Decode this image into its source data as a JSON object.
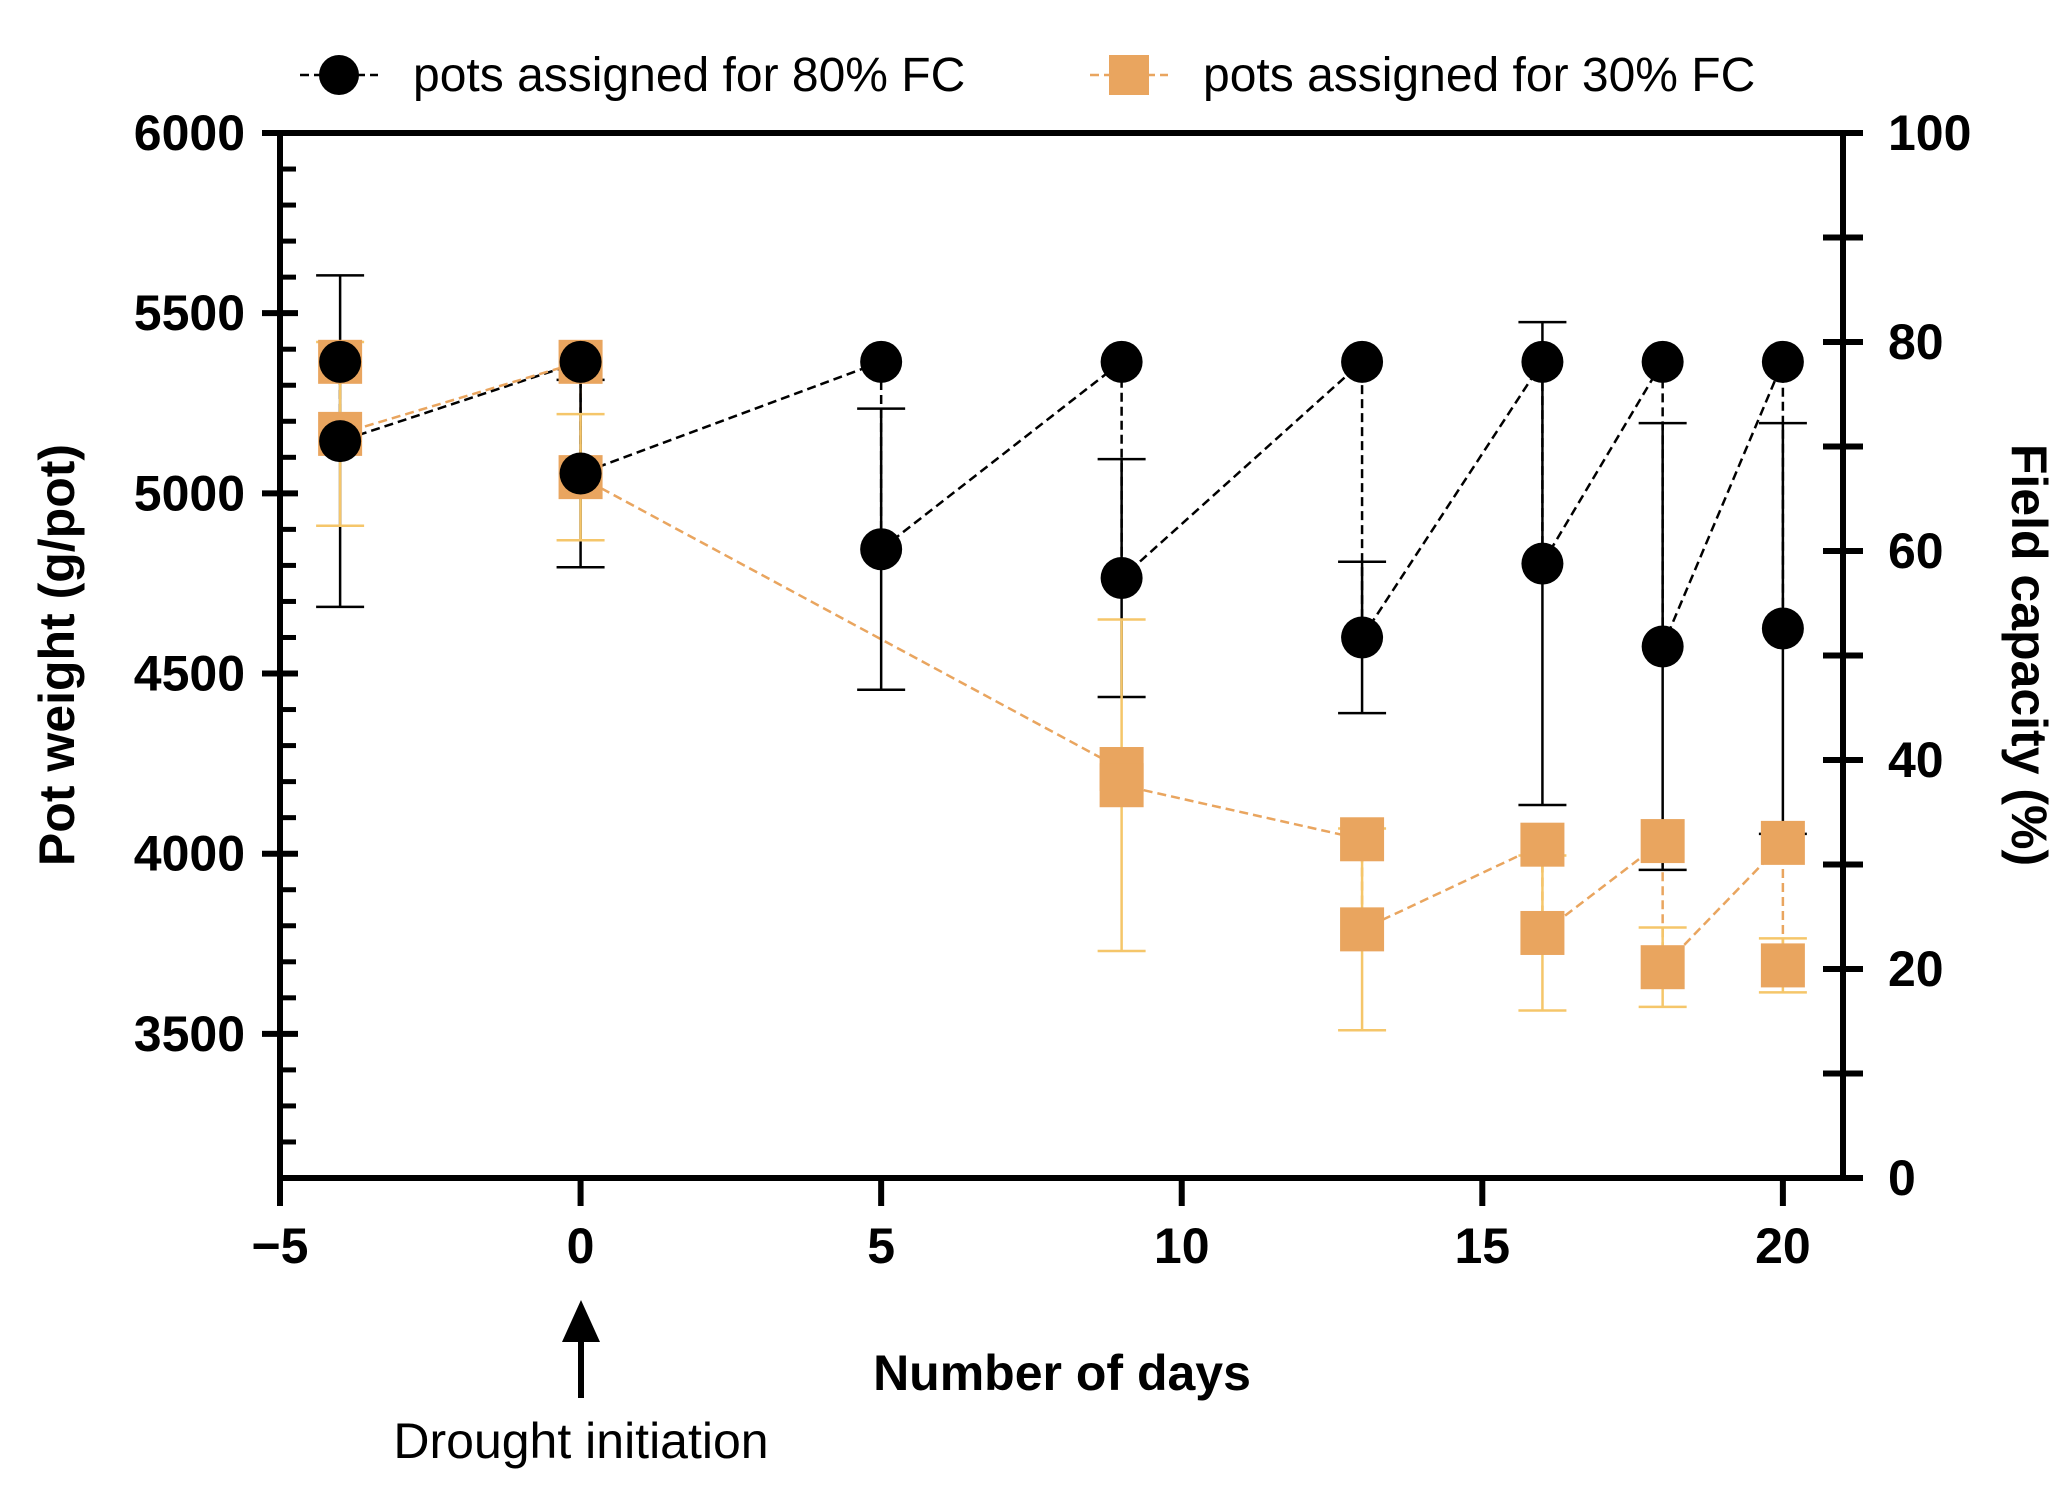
{
  "chart_data": {
    "type": "line",
    "xlabel": "Number of days",
    "ylabel": "Pot weight (g/pot)",
    "y2label": "Field capacity (%)",
    "xlim": [
      -5,
      21
    ],
    "ylim": [
      3100,
      6000
    ],
    "y2lim": [
      0,
      100
    ],
    "xticks": [
      -5,
      0,
      5,
      10,
      15,
      20
    ],
    "xtick_labels": [
      "−5",
      "0",
      "5",
      "10",
      "15",
      "20"
    ],
    "yticks": [
      3500,
      4000,
      4500,
      5000,
      5500,
      6000
    ],
    "ytick_labels": [
      "3500",
      "4000",
      "4500",
      "5000",
      "5500",
      "6000"
    ],
    "y2ticks": [
      0,
      20,
      40,
      60,
      80,
      100
    ],
    "y2tick_labels": [
      "0",
      "20",
      "40",
      "60",
      "80",
      "100"
    ],
    "annotation": {
      "text": "Drought initiation",
      "x": 0
    },
    "legend_position": "top",
    "series": [
      {
        "name": "pots assigned for 80% FC",
        "color": "#000000",
        "errorbar_color": "#000000",
        "marker": "circle",
        "points": [
          {
            "x": -4,
            "y": 5365
          },
          {
            "x": -4,
            "y": 5145,
            "err": 460
          },
          {
            "x": 0,
            "y": 5365
          },
          {
            "x": 0,
            "y": 5055,
            "err": 260
          },
          {
            "x": 5,
            "y": 5365
          },
          {
            "x": 5,
            "y": 4845,
            "err": 390
          },
          {
            "x": 9,
            "y": 5365
          },
          {
            "x": 9,
            "y": 4765,
            "err": 330
          },
          {
            "x": 13,
            "y": 5365
          },
          {
            "x": 13,
            "y": 4600,
            "err": 210
          },
          {
            "x": 16,
            "y": 5365
          },
          {
            "x": 16,
            "y": 4805,
            "err": 670
          },
          {
            "x": 18,
            "y": 5365
          },
          {
            "x": 18,
            "y": 4575,
            "err": 620
          },
          {
            "x": 20,
            "y": 5365
          },
          {
            "x": 20,
            "y": 4625,
            "err": 570
          }
        ]
      },
      {
        "name": "pots assigned for 30% FC",
        "color": "#E9A55F",
        "errorbar_color": "#F5C66A",
        "marker": "square",
        "points": [
          {
            "x": -4,
            "y": 5365
          },
          {
            "x": -4,
            "y": 5165,
            "err": 255
          },
          {
            "x": 0,
            "y": 5365
          },
          {
            "x": 0,
            "y": 5045,
            "err": 175
          },
          {
            "x": 9,
            "y": 4235
          },
          {
            "x": 9,
            "y": 4190,
            "err": 460
          },
          {
            "x": 13,
            "y": 4040
          },
          {
            "x": 13,
            "y": 3790,
            "err": 280
          },
          {
            "x": 16,
            "y": 4025
          },
          {
            "x": 16,
            "y": 3780,
            "err": 215
          },
          {
            "x": 18,
            "y": 4035
          },
          {
            "x": 18,
            "y": 3685,
            "err": 110
          },
          {
            "x": 20,
            "y": 4030
          },
          {
            "x": 20,
            "y": 3690,
            "err": 75
          }
        ]
      }
    ]
  }
}
